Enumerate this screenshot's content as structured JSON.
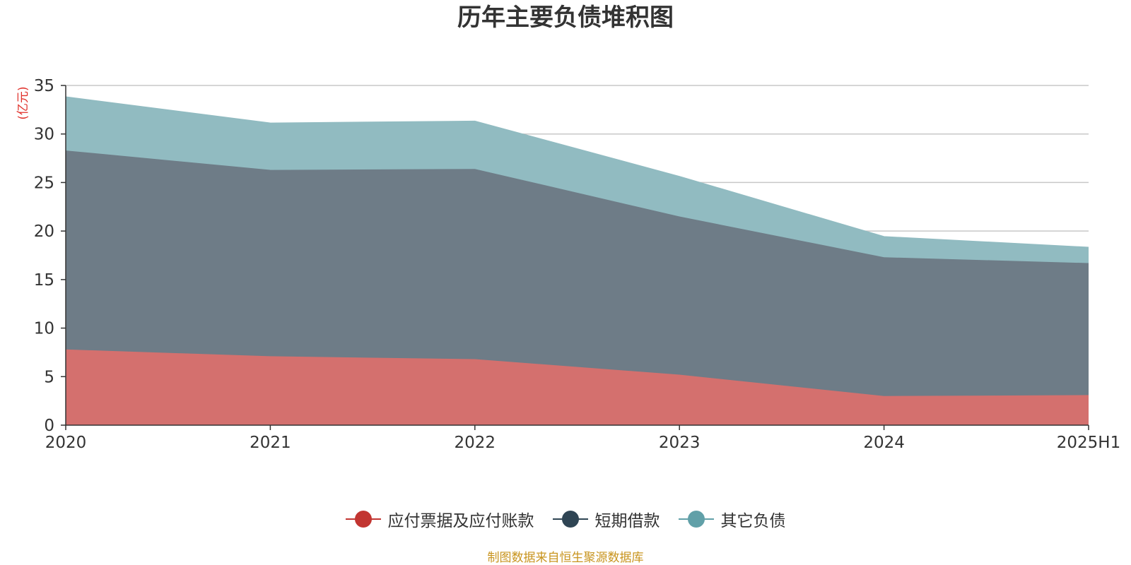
{
  "chart_data": {
    "type": "area",
    "stacked": true,
    "title": "历年主要负债堆积图",
    "ylabel": "(亿元)",
    "xlabel": "",
    "categories": [
      "2020",
      "2021",
      "2022",
      "2023",
      "2024",
      "2025H1"
    ],
    "ylim": [
      0,
      35
    ],
    "yticks": [
      0,
      5,
      10,
      15,
      20,
      25,
      30,
      35
    ],
    "grid": true,
    "legend_position": "bottom",
    "series": [
      {
        "name": "应付票据及应付账款",
        "values": [
          7.8,
          7.1,
          6.8,
          5.2,
          3.0,
          3.1
        ],
        "color": "#c23531",
        "fill": "#d4706e"
      },
      {
        "name": "短期借款",
        "values": [
          20.5,
          19.2,
          19.6,
          16.3,
          14.3,
          13.6
        ],
        "color": "#2f4554",
        "fill": "#6e7c87"
      },
      {
        "name": "其它负债",
        "values": [
          5.5,
          4.8,
          4.9,
          4.1,
          2.1,
          1.6
        ],
        "color": "#61a0a8",
        "fill": "#91bbc1"
      }
    ]
  },
  "source_note": "制图数据来自恒生聚源数据库",
  "colors": {
    "title": "#333333",
    "ylabel": "#e0302a",
    "source_note": "#c8941e",
    "grid": "#c8c8c8",
    "axis": "#333333"
  }
}
